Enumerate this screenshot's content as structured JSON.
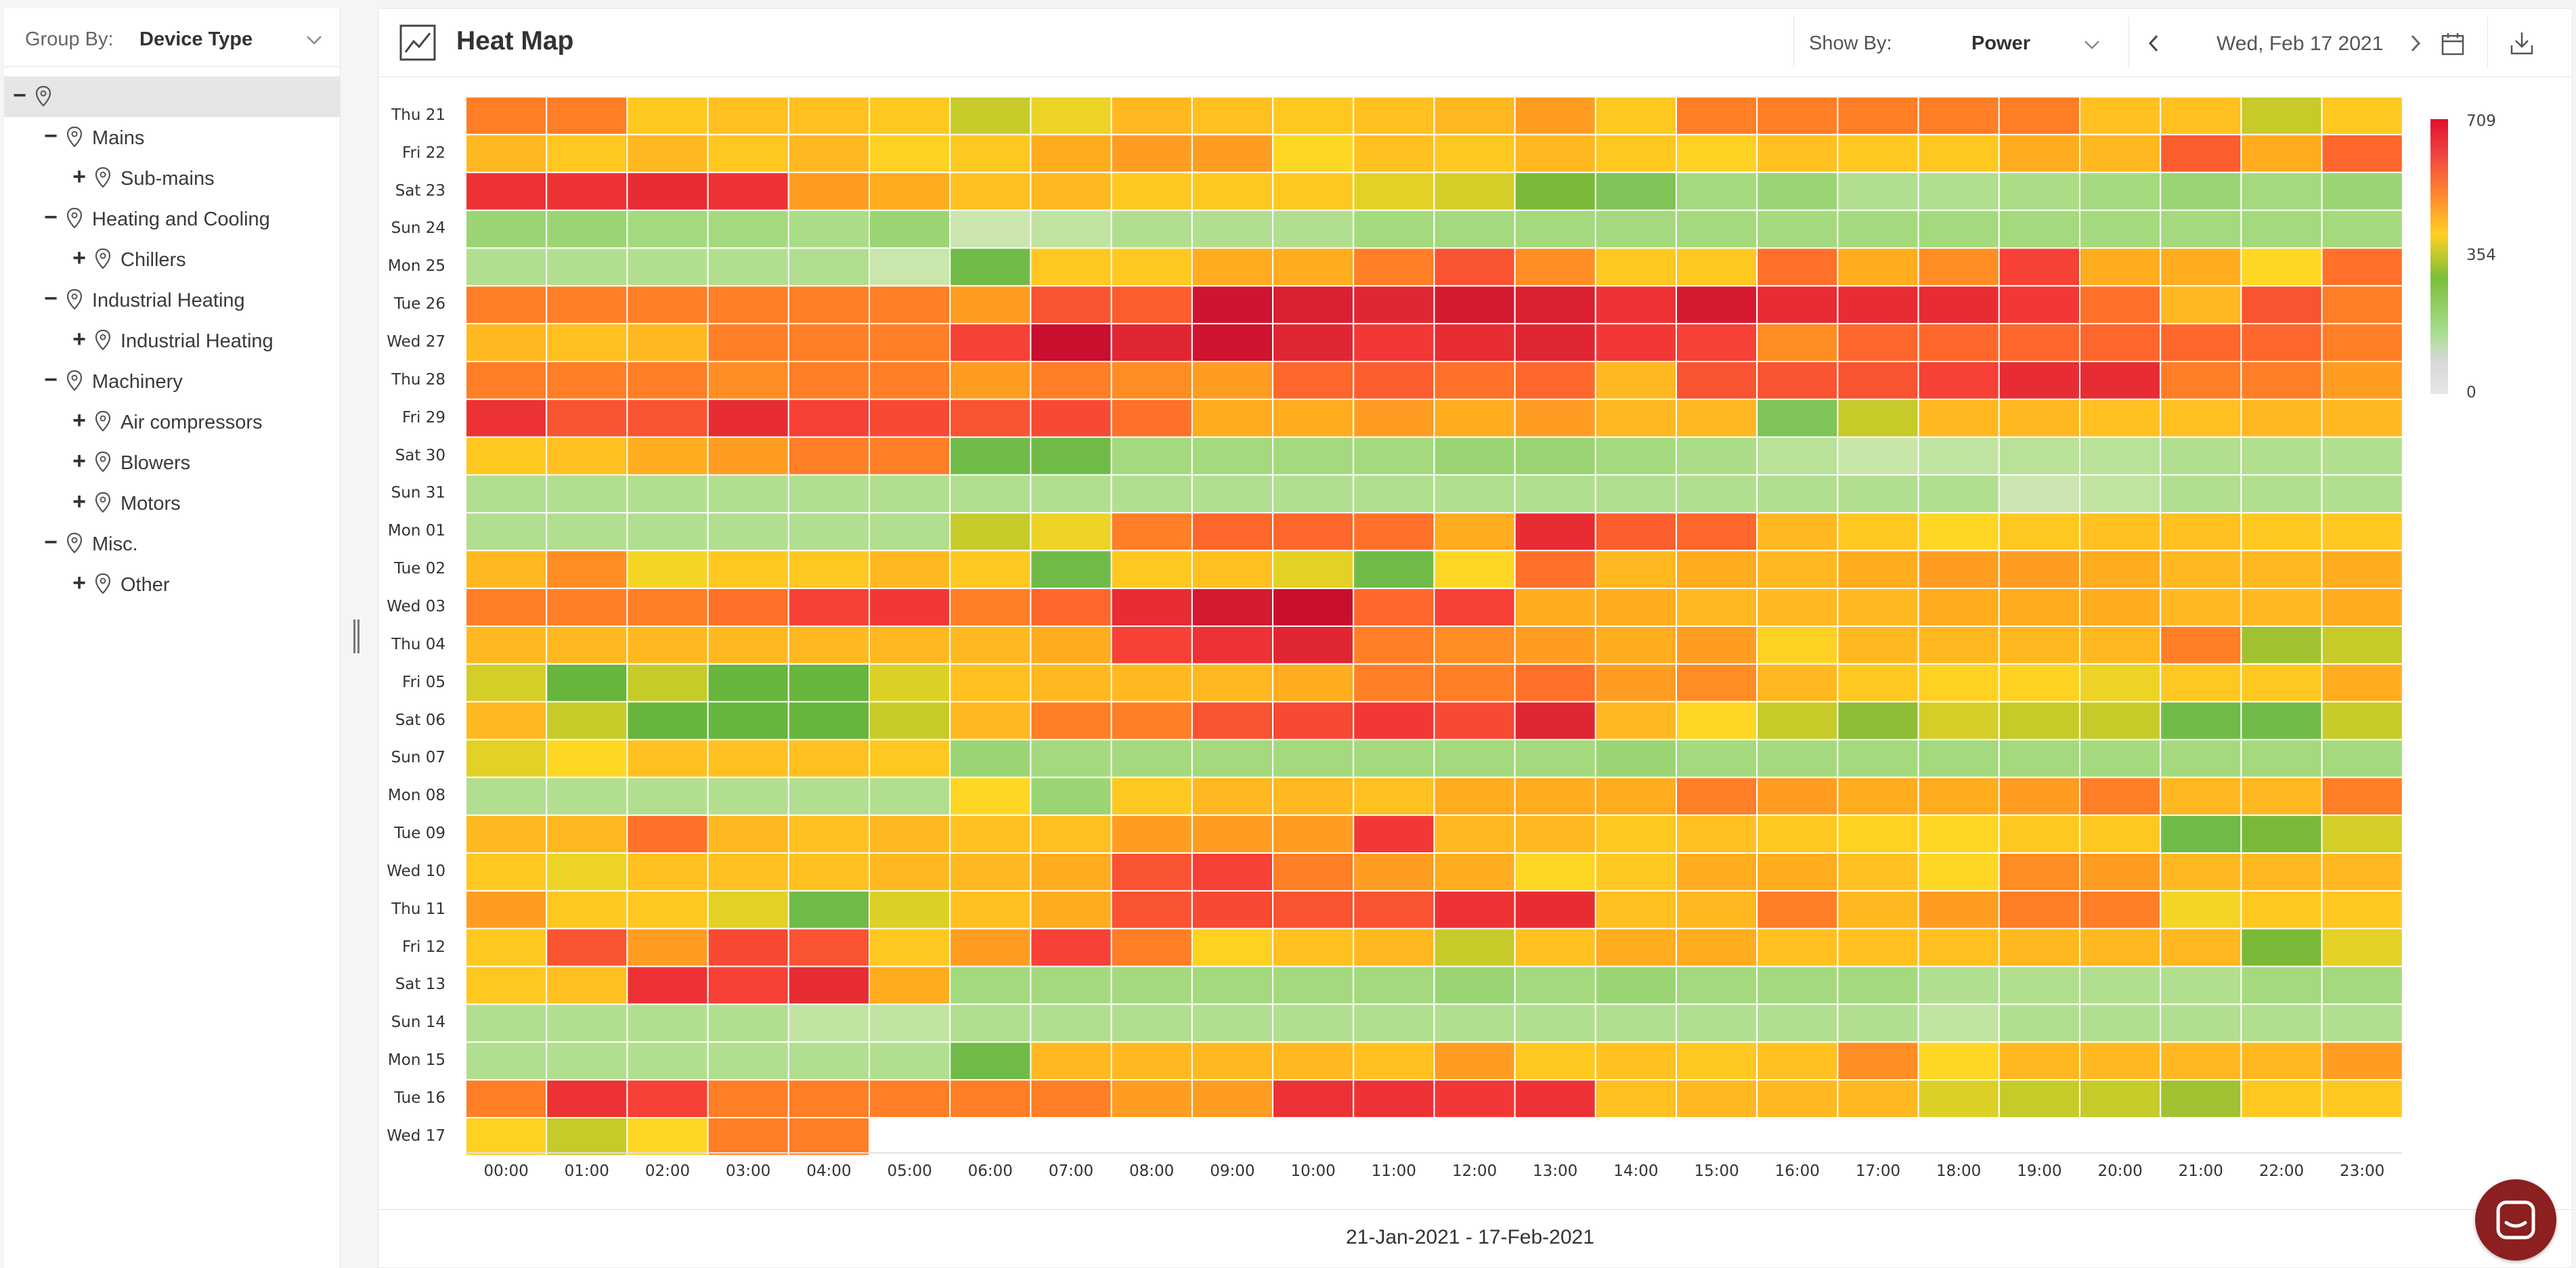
{
  "sidebar": {
    "groupby_label": "Group By:",
    "groupby_value": "Device Type",
    "tree": [
      {
        "level": 0,
        "toggle": "−",
        "label": ""
      },
      {
        "level": 1,
        "toggle": "−",
        "label": "Mains"
      },
      {
        "level": 2,
        "toggle": "+",
        "label": "Sub-mains"
      },
      {
        "level": 1,
        "toggle": "−",
        "label": "Heating and Cooling"
      },
      {
        "level": 2,
        "toggle": "+",
        "label": "Chillers"
      },
      {
        "level": 1,
        "toggle": "−",
        "label": "Industrial Heating"
      },
      {
        "level": 2,
        "toggle": "+",
        "label": "Industrial Heating"
      },
      {
        "level": 1,
        "toggle": "−",
        "label": "Machinery"
      },
      {
        "level": 2,
        "toggle": "+",
        "label": "Air compressors"
      },
      {
        "level": 2,
        "toggle": "+",
        "label": "Blowers"
      },
      {
        "level": 2,
        "toggle": "+",
        "label": "Motors"
      },
      {
        "level": 1,
        "toggle": "−",
        "label": "Misc."
      },
      {
        "level": 2,
        "toggle": "+",
        "label": "Other"
      }
    ]
  },
  "header": {
    "title": "Heat Map",
    "showby_label": "Show By:",
    "showby_value": "Power",
    "date": "Wed, Feb 17 2021"
  },
  "footer": {
    "range": "21-Jan-2021 - 17-Feb-2021"
  },
  "chart_data": {
    "type": "heatmap",
    "x": [
      "00:00",
      "01:00",
      "02:00",
      "03:00",
      "04:00",
      "05:00",
      "06:00",
      "07:00",
      "08:00",
      "09:00",
      "10:00",
      "11:00",
      "12:00",
      "13:00",
      "14:00",
      "15:00",
      "16:00",
      "17:00",
      "18:00",
      "19:00",
      "20:00",
      "21:00",
      "22:00",
      "23:00"
    ],
    "y": [
      "Thu 21",
      "Fri 22",
      "Sat 23",
      "Sun 24",
      "Mon 25",
      "Tue 26",
      "Wed 27",
      "Thu 28",
      "Fri 29",
      "Sat 30",
      "Sun 31",
      "Mon 01",
      "Tue 02",
      "Wed 03",
      "Thu 04",
      "Fri 05",
      "Sat 06",
      "Sun 07",
      "Mon 08",
      "Tue 09",
      "Wed 10",
      "Thu 11",
      "Fri 12",
      "Sat 13",
      "Sun 14",
      "Mon 15",
      "Tue 16",
      "Wed 17"
    ],
    "colorscale": {
      "min": 0,
      "mid": 354,
      "max": 709
    },
    "values": [
      [
        560,
        560,
        500,
        510,
        510,
        500,
        420,
        460,
        520,
        510,
        500,
        510,
        520,
        540,
        500,
        560,
        560,
        560,
        560,
        560,
        510,
        510,
        420,
        500
      ],
      [
        520,
        500,
        520,
        500,
        520,
        490,
        500,
        530,
        540,
        540,
        480,
        510,
        500,
        520,
        500,
        490,
        510,
        500,
        500,
        530,
        520,
        590,
        530,
        580
      ],
      [
        640,
        640,
        650,
        640,
        540,
        530,
        510,
        520,
        500,
        500,
        500,
        450,
        430,
        380,
        350,
        320,
        330,
        300,
        300,
        310,
        320,
        330,
        320,
        330
      ],
      [
        330,
        330,
        320,
        320,
        310,
        330,
        250,
        280,
        300,
        300,
        300,
        320,
        320,
        320,
        320,
        320,
        320,
        320,
        320,
        320,
        320,
        320,
        320,
        320
      ],
      [
        300,
        300,
        300,
        300,
        300,
        260,
        360,
        500,
        500,
        530,
        530,
        560,
        600,
        550,
        500,
        500,
        570,
        530,
        550,
        620,
        530,
        530,
        480,
        570
      ],
      [
        560,
        560,
        560,
        560,
        560,
        560,
        540,
        600,
        590,
        690,
        670,
        660,
        680,
        670,
        640,
        680,
        650,
        650,
        650,
        630,
        570,
        520,
        600,
        560
      ],
      [
        520,
        510,
        520,
        560,
        560,
        560,
        620,
        700,
        660,
        690,
        660,
        630,
        650,
        660,
        630,
        620,
        550,
        580,
        580,
        580,
        580,
        580,
        580,
        560
      ],
      [
        560,
        560,
        560,
        550,
        560,
        560,
        540,
        560,
        550,
        540,
        580,
        590,
        570,
        580,
        520,
        600,
        600,
        600,
        620,
        650,
        650,
        560,
        560,
        540
      ],
      [
        640,
        600,
        600,
        650,
        620,
        610,
        600,
        610,
        570,
        530,
        530,
        540,
        530,
        540,
        520,
        520,
        350,
        420,
        520,
        520,
        510,
        510,
        520,
        520
      ],
      [
        500,
        510,
        530,
        540,
        560,
        560,
        360,
        360,
        320,
        320,
        320,
        320,
        330,
        330,
        320,
        310,
        290,
        270,
        280,
        290,
        290,
        300,
        300,
        300
      ],
      [
        300,
        300,
        300,
        300,
        300,
        300,
        300,
        300,
        300,
        300,
        300,
        300,
        300,
        300,
        300,
        300,
        300,
        300,
        300,
        240,
        280,
        300,
        300,
        300
      ],
      [
        300,
        300,
        300,
        300,
        300,
        300,
        420,
        460,
        560,
        580,
        580,
        570,
        530,
        650,
        590,
        580,
        520,
        500,
        480,
        500,
        510,
        510,
        500,
        500
      ],
      [
        520,
        550,
        470,
        500,
        500,
        520,
        500,
        360,
        500,
        510,
        450,
        360,
        480,
        570,
        520,
        530,
        520,
        530,
        540,
        540,
        530,
        520,
        520,
        530
      ],
      [
        560,
        560,
        560,
        570,
        620,
        630,
        560,
        580,
        650,
        680,
        700,
        580,
        620,
        530,
        530,
        520,
        520,
        520,
        530,
        530,
        530,
        520,
        520,
        530
      ],
      [
        520,
        520,
        520,
        520,
        520,
        520,
        520,
        530,
        620,
        640,
        660,
        560,
        550,
        540,
        530,
        540,
        490,
        520,
        520,
        520,
        520,
        560,
        400,
        420
      ],
      [
        430,
        370,
        420,
        370,
        370,
        440,
        510,
        520,
        520,
        520,
        530,
        560,
        560,
        570,
        540,
        550,
        520,
        500,
        490,
        490,
        460,
        500,
        500,
        530
      ],
      [
        520,
        420,
        370,
        370,
        370,
        420,
        520,
        560,
        560,
        600,
        610,
        630,
        610,
        660,
        520,
        480,
        420,
        390,
        430,
        420,
        420,
        360,
        360,
        420
      ],
      [
        450,
        480,
        510,
        510,
        510,
        500,
        330,
        320,
        320,
        320,
        320,
        320,
        320,
        320,
        330,
        320,
        320,
        320,
        320,
        320,
        320,
        320,
        320,
        320
      ],
      [
        300,
        300,
        300,
        300,
        300,
        300,
        480,
        330,
        500,
        520,
        520,
        510,
        530,
        530,
        530,
        560,
        540,
        530,
        530,
        540,
        560,
        520,
        520,
        560
      ],
      [
        520,
        520,
        570,
        520,
        510,
        520,
        510,
        510,
        540,
        540,
        540,
        630,
        520,
        520,
        500,
        510,
        500,
        490,
        480,
        500,
        500,
        360,
        380,
        430
      ],
      [
        500,
        460,
        510,
        510,
        510,
        520,
        520,
        530,
        600,
        620,
        560,
        540,
        530,
        480,
        500,
        530,
        530,
        510,
        480,
        550,
        540,
        520,
        520,
        520
      ],
      [
        540,
        500,
        500,
        450,
        360,
        440,
        510,
        530,
        600,
        610,
        600,
        600,
        640,
        650,
        510,
        520,
        560,
        520,
        540,
        560,
        560,
        470,
        500,
        500
      ],
      [
        500,
        600,
        540,
        610,
        600,
        500,
        540,
        620,
        560,
        490,
        510,
        520,
        420,
        510,
        530,
        530,
        510,
        510,
        510,
        520,
        520,
        520,
        380,
        450
      ],
      [
        500,
        510,
        640,
        620,
        650,
        530,
        320,
        320,
        320,
        320,
        320,
        320,
        330,
        320,
        330,
        320,
        320,
        320,
        300,
        300,
        300,
        300,
        320,
        320
      ],
      [
        300,
        300,
        300,
        300,
        280,
        280,
        300,
        300,
        300,
        300,
        300,
        300,
        300,
        300,
        300,
        300,
        300,
        300,
        280,
        300,
        300,
        300,
        300,
        300
      ],
      [
        300,
        300,
        300,
        300,
        300,
        300,
        360,
        520,
        520,
        520,
        520,
        510,
        540,
        500,
        510,
        500,
        510,
        550,
        480,
        520,
        520,
        520,
        520,
        540
      ],
      [
        560,
        640,
        620,
        560,
        560,
        560,
        560,
        560,
        540,
        540,
        640,
        640,
        630,
        640,
        510,
        520,
        520,
        520,
        440,
        420,
        420,
        400,
        500,
        500
      ],
      [
        490,
        420,
        480,
        560,
        560,
        null,
        null,
        null,
        null,
        null,
        null,
        null,
        null,
        null,
        null,
        null,
        null,
        null,
        null,
        null,
        null,
        null,
        null,
        null
      ]
    ]
  },
  "legend": {
    "max": "709",
    "mid": "354",
    "min": "0"
  }
}
